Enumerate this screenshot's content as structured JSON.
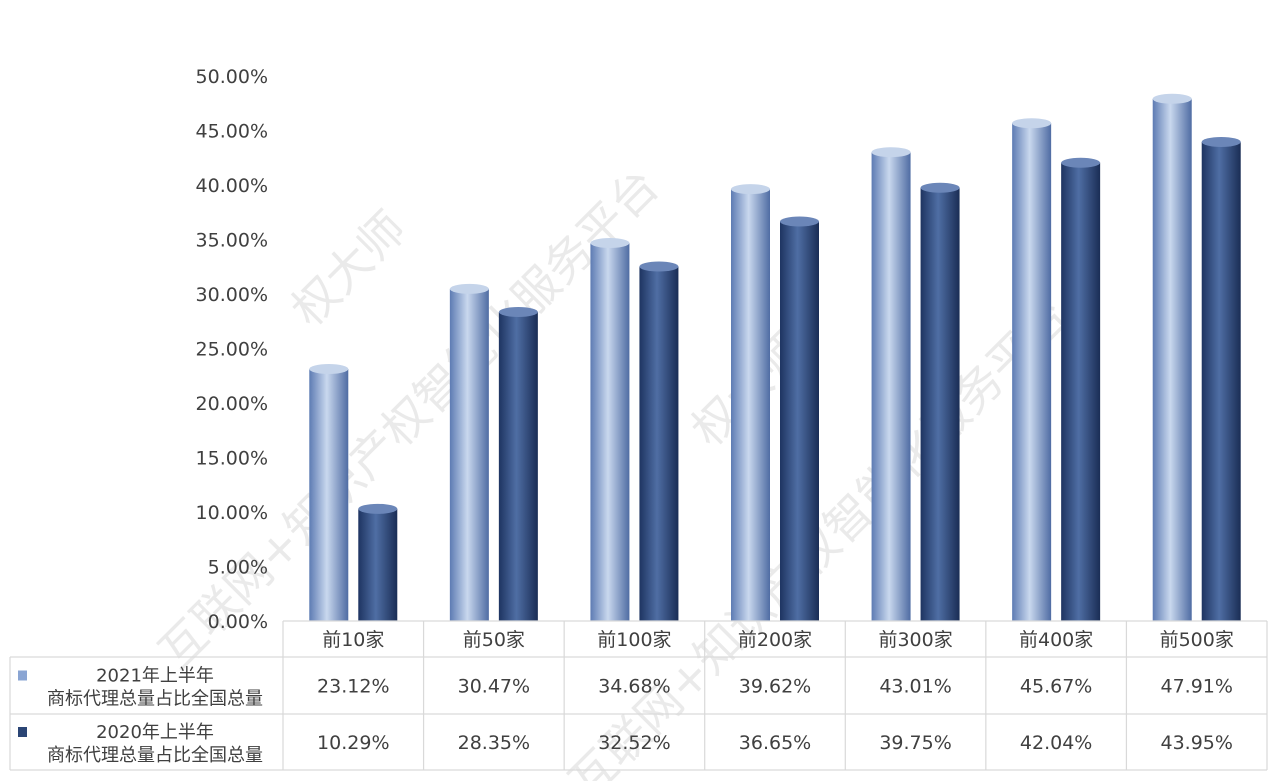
{
  "chart_data": {
    "type": "bar",
    "categories": [
      "前10家",
      "前50家",
      "前100家",
      "前200家",
      "前300家",
      "前400家",
      "前500家"
    ],
    "series": [
      {
        "name_line1": "2021年上半年",
        "name_line2": "商标代理总量占比全国总量",
        "values": [
          23.12,
          30.47,
          34.68,
          39.62,
          43.01,
          45.67,
          47.91
        ],
        "labels": [
          "23.12%",
          "30.47%",
          "34.68%",
          "39.62%",
          "43.01%",
          "45.67%",
          "47.91%"
        ],
        "color": "#7a97c9"
      },
      {
        "name_line1": "2020年上半年",
        "name_line2": "商标代理总量占比全国总量",
        "values": [
          10.29,
          28.35,
          32.52,
          36.65,
          39.75,
          42.04,
          43.95
        ],
        "labels": [
          "10.29%",
          "28.35%",
          "32.52%",
          "36.65%",
          "39.75%",
          "42.04%",
          "43.95%"
        ],
        "color": "#2b4575"
      }
    ],
    "y_ticks": [
      "0.00%",
      "5.00%",
      "10.00%",
      "15.00%",
      "20.00%",
      "25.00%",
      "30.00%",
      "35.00%",
      "40.00%",
      "45.00%",
      "50.00%"
    ],
    "ylim": [
      0,
      50
    ],
    "grid": false,
    "legend": "data-table"
  },
  "watermarks": [
    "权大师",
    "互联网+知识产权智能化服务平台"
  ]
}
